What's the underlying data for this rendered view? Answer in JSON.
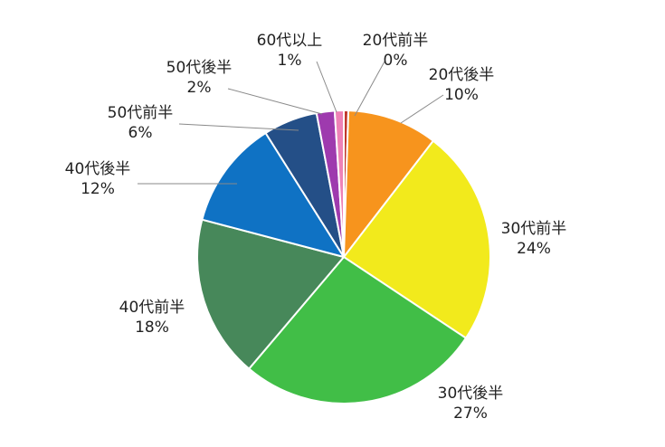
{
  "chart_data": {
    "type": "pie",
    "start_angle_deg": 0,
    "direction": "clockwise",
    "legend": "none",
    "slices": [
      {
        "label": "20代前半",
        "value": 0.5,
        "display": "0%",
        "color": "#C0392B"
      },
      {
        "label": "20代後半",
        "value": 10,
        "display": "10%",
        "color": "#F7941D"
      },
      {
        "label": "30代前半",
        "value": 24,
        "display": "24%",
        "color": "#F2EA1C"
      },
      {
        "label": "30代後半",
        "value": 27,
        "display": "27%",
        "color": "#41BE47"
      },
      {
        "label": "40代前半",
        "value": 18,
        "display": "18%",
        "color": "#47885A"
      },
      {
        "label": "40代後半",
        "value": 12,
        "display": "12%",
        "color": "#0F72C4"
      },
      {
        "label": "50代前半",
        "value": 6,
        "display": "6%",
        "color": "#244F87"
      },
      {
        "label": "50代後半",
        "value": 2,
        "display": "2%",
        "color": "#9E3AAE"
      },
      {
        "label": "60代以上",
        "value": 1,
        "display": "1%",
        "color": "#EE82B6"
      }
    ]
  }
}
